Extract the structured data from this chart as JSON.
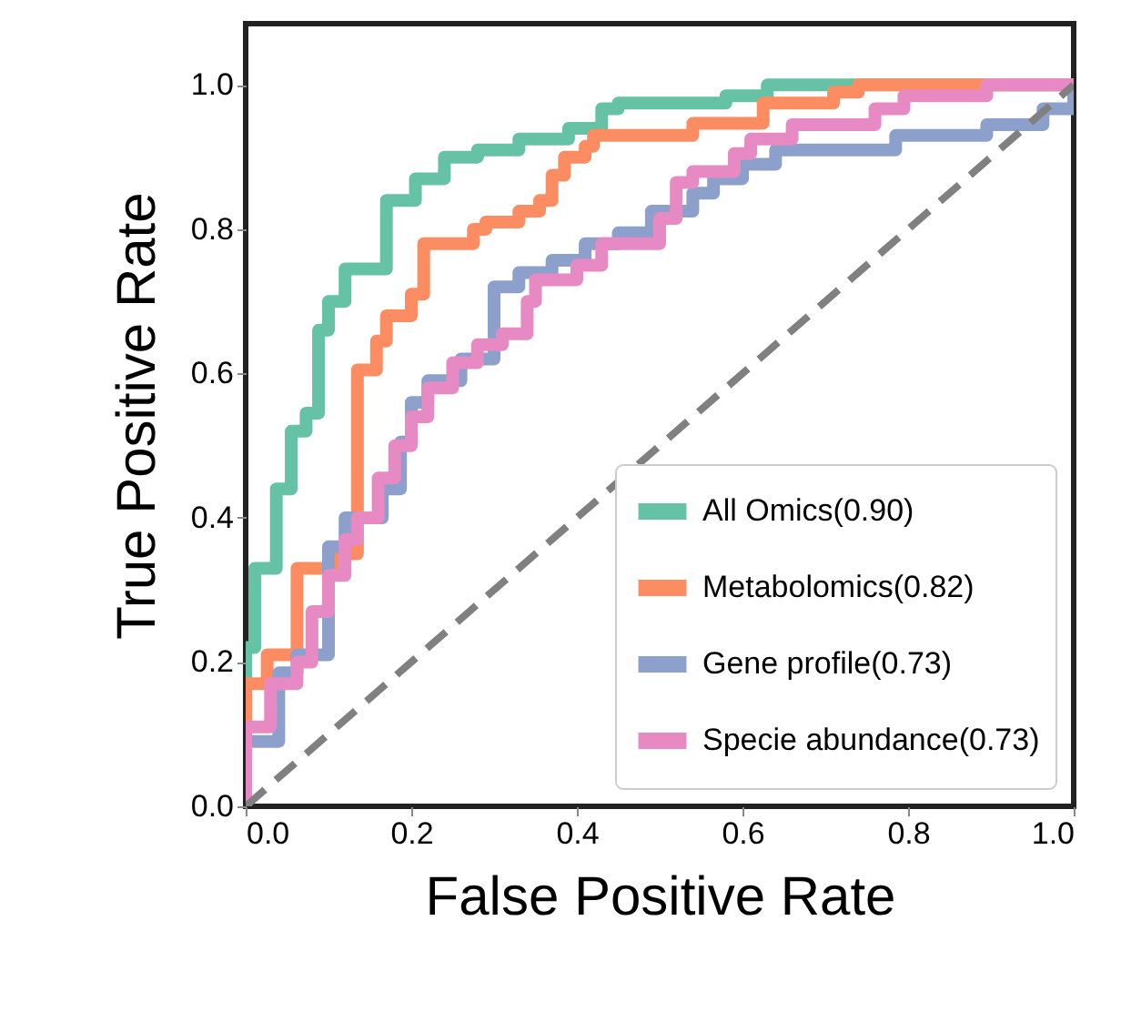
{
  "chart_data": {
    "type": "step",
    "xlabel": "False Positive Rate",
    "ylabel": "True Positive Rate",
    "xlim": [
      0,
      1
    ],
    "ylim": [
      0,
      1.085
    ],
    "xticks": [
      {
        "value": 0,
        "label": "0.0"
      },
      {
        "value": 0.2,
        "label": "0.2"
      },
      {
        "value": 0.4,
        "label": "0.4"
      },
      {
        "value": 0.6,
        "label": "0.6"
      },
      {
        "value": 0.8,
        "label": "0.8"
      },
      {
        "value": 1,
        "label": "1.0"
      }
    ],
    "yticks": [
      {
        "value": 0,
        "label": "0.0"
      },
      {
        "value": 0.2,
        "label": "0.2"
      },
      {
        "value": 0.4,
        "label": "0.4"
      },
      {
        "value": 0.6,
        "label": "0.6"
      },
      {
        "value": 0.8,
        "label": "0.8"
      },
      {
        "value": 1,
        "label": "1.0"
      }
    ],
    "grid": false,
    "legend": "bottom right",
    "marker": "none",
    "series": [
      {
        "name": "All Omics(0.90)",
        "color": "#66c2a5",
        "x": [
          0,
          0,
          0.011,
          0.037,
          0.055,
          0.073,
          0.088,
          0.1,
          0.12,
          0.17,
          0.205,
          0.24,
          0.28,
          0.33,
          0.39,
          0.43,
          0.45,
          0.58,
          0.63,
          1.0
        ],
        "values": [
          0,
          0.22,
          0.33,
          0.44,
          0.52,
          0.545,
          0.66,
          0.7,
          0.745,
          0.84,
          0.87,
          0.9,
          0.91,
          0.925,
          0.94,
          0.967,
          0.975,
          0.985,
          1.0,
          1.0
        ]
      },
      {
        "name": "Metabolomics(0.82)",
        "color": "#fc8d62",
        "x": [
          0,
          0,
          0.026,
          0.062,
          0.11,
          0.135,
          0.158,
          0.17,
          0.2,
          0.215,
          0.275,
          0.29,
          0.33,
          0.355,
          0.37,
          0.385,
          0.41,
          0.42,
          0.54,
          0.625,
          0.71,
          0.74,
          1.0
        ],
        "values": [
          0,
          0.17,
          0.21,
          0.33,
          0.35,
          0.605,
          0.645,
          0.68,
          0.71,
          0.78,
          0.8,
          0.81,
          0.825,
          0.84,
          0.875,
          0.9,
          0.915,
          0.93,
          0.947,
          0.975,
          0.99,
          1.0,
          1.0
        ]
      },
      {
        "name": "Gene profile(0.73)",
        "color": "#8da0cb",
        "x": [
          0,
          0,
          0.04,
          0.062,
          0.1,
          0.12,
          0.165,
          0.187,
          0.2,
          0.22,
          0.26,
          0.3,
          0.33,
          0.37,
          0.41,
          0.45,
          0.49,
          0.54,
          0.565,
          0.6,
          0.64,
          0.785,
          0.895,
          0.963,
          1.0
        ],
        "values": [
          0,
          0.09,
          0.185,
          0.21,
          0.36,
          0.4,
          0.44,
          0.505,
          0.56,
          0.59,
          0.62,
          0.72,
          0.74,
          0.757,
          0.78,
          0.795,
          0.825,
          0.85,
          0.87,
          0.89,
          0.91,
          0.93,
          0.945,
          0.967,
          1.0
        ]
      },
      {
        "name": "Specie abundance(0.73)",
        "color": "#e78ac3",
        "x": [
          0,
          0,
          0.03,
          0.062,
          0.08,
          0.1,
          0.12,
          0.135,
          0.16,
          0.18,
          0.2,
          0.22,
          0.25,
          0.28,
          0.31,
          0.34,
          0.35,
          0.4,
          0.43,
          0.5,
          0.52,
          0.54,
          0.59,
          0.61,
          0.66,
          0.76,
          0.795,
          0.895,
          1.0
        ],
        "values": [
          0,
          0.11,
          0.17,
          0.2,
          0.27,
          0.32,
          0.37,
          0.4,
          0.455,
          0.5,
          0.54,
          0.58,
          0.615,
          0.64,
          0.655,
          0.7,
          0.73,
          0.75,
          0.78,
          0.815,
          0.865,
          0.88,
          0.905,
          0.925,
          0.945,
          0.967,
          0.985,
          1.0,
          1.0
        ]
      },
      {
        "type": "line",
        "line_style": "dashed",
        "color": "#808080",
        "x": [
          0,
          1
        ],
        "values": [
          0,
          1
        ]
      }
    ]
  }
}
